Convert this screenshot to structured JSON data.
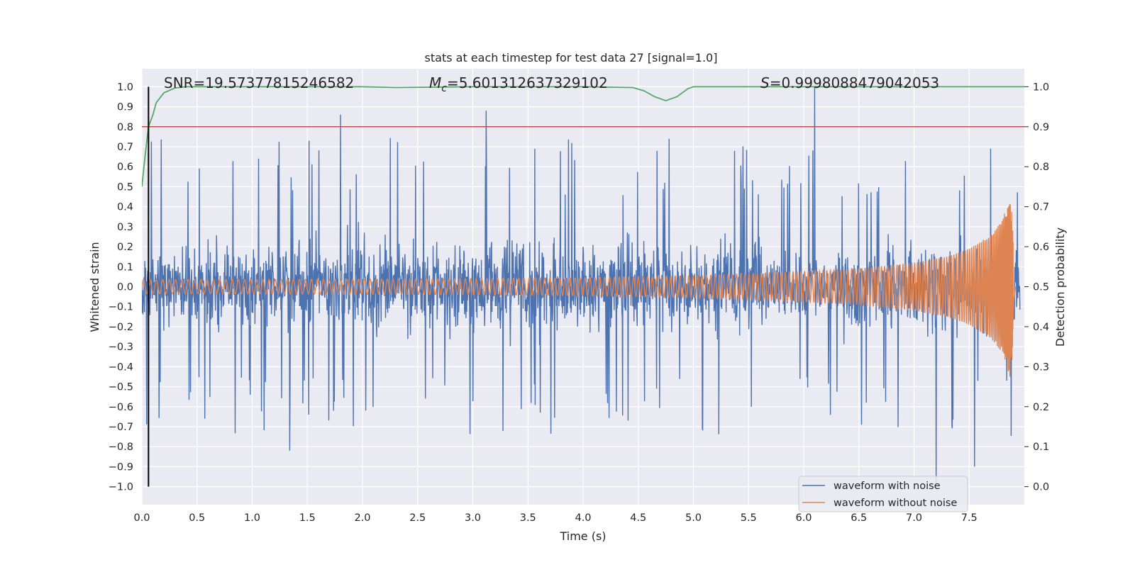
{
  "chart_data": {
    "type": "line",
    "title": "stats at each timestep for test data 27 [signal=1.0]",
    "xlabel": "Time (s)",
    "ylabel": "Whitened strain",
    "y2label": "Detection probability",
    "xlim": [
      0.0,
      8.0
    ],
    "ylim": [
      -1.09,
      1.09
    ],
    "y2lim": [
      -0.045,
      1.045
    ],
    "xticks": [
      "0.0",
      "0.5",
      "1.0",
      "1.5",
      "2.0",
      "2.5",
      "3.0",
      "3.5",
      "4.0",
      "4.5",
      "5.0",
      "5.5",
      "6.0",
      "6.5",
      "7.0",
      "7.5"
    ],
    "yticks": [
      "1.0",
      "0.9",
      "0.8",
      "0.7",
      "0.6",
      "0.5",
      "0.4",
      "0.3",
      "0.2",
      "0.1",
      "0.0",
      "−0.1",
      "−0.2",
      "−0.3",
      "−0.4",
      "−0.5",
      "−0.6",
      "−0.7",
      "−0.8",
      "−0.9",
      "−1.0"
    ],
    "y2ticks": [
      "1.0",
      "0.9",
      "0.8",
      "0.7",
      "0.6",
      "0.5",
      "0.4",
      "0.3",
      "0.2",
      "0.1",
      "0.0"
    ],
    "grid": true,
    "legend_position": "lower-right",
    "colors": {
      "noisy": "#4c72b0",
      "clean": "#dd8452",
      "probability": "#55a868",
      "threshold": "#c44e52",
      "marker": "#000000",
      "background": "#eaeaf2",
      "grid": "#ffffff"
    },
    "annotations": {
      "snr": "SNR=19.57377815246582",
      "mc_prefix": "M",
      "mc_sub": "c",
      "mc_value": "=5.601312637329102",
      "s_prefix": "S",
      "s_value": "=0.9998088479042053"
    },
    "series": [
      {
        "name": "waveform with noise",
        "axis": "left",
        "noise_envelope": {
          "typical_peak": 0.45,
          "max_peak": 1.0,
          "min_trough": -1.0
        },
        "notable_peaks": [
          {
            "x": 1.8,
            "y": 0.86
          },
          {
            "x": 3.12,
            "y": 0.88
          },
          {
            "x": 6.1,
            "y": 1.0
          },
          {
            "x": 1.34,
            "y": -0.82
          },
          {
            "x": 7.2,
            "y": -1.0
          },
          {
            "x": 7.55,
            "y": -0.9
          }
        ]
      },
      {
        "name": "waveform without noise",
        "axis": "left",
        "amplitude_profile": {
          "x": [
            0.0,
            1.0,
            2.0,
            3.0,
            4.0,
            5.0,
            6.0,
            6.5,
            7.0,
            7.3,
            7.5,
            7.7,
            7.8,
            7.88,
            7.92
          ],
          "amplitude": [
            0.035,
            0.036,
            0.038,
            0.04,
            0.045,
            0.055,
            0.075,
            0.09,
            0.12,
            0.15,
            0.19,
            0.26,
            0.33,
            0.47,
            0.0
          ]
        }
      },
      {
        "name": "probability",
        "axis": "right",
        "x": [
          0.0,
          0.03,
          0.06,
          0.1,
          0.13,
          0.2,
          0.3,
          0.4,
          1.0,
          2.0,
          2.3,
          3.0,
          4.0,
          4.45,
          4.55,
          4.65,
          4.75,
          4.85,
          4.95,
          5.0,
          6.0,
          7.0,
          8.0
        ],
        "y": [
          0.75,
          0.83,
          0.9,
          0.93,
          0.96,
          0.985,
          0.997,
          1.0,
          1.0,
          1.0,
          0.998,
          1.0,
          1.0,
          0.998,
          0.99,
          0.975,
          0.965,
          0.975,
          0.995,
          1.0,
          1.0,
          1.0,
          1.0
        ]
      }
    ],
    "threshold": {
      "axis": "right",
      "y": 0.9
    },
    "marker_line": {
      "x": 0.06,
      "ymin": -1.0,
      "ymax": 1.0
    },
    "legend": [
      "waveform with noise",
      "waveform without noise"
    ]
  }
}
